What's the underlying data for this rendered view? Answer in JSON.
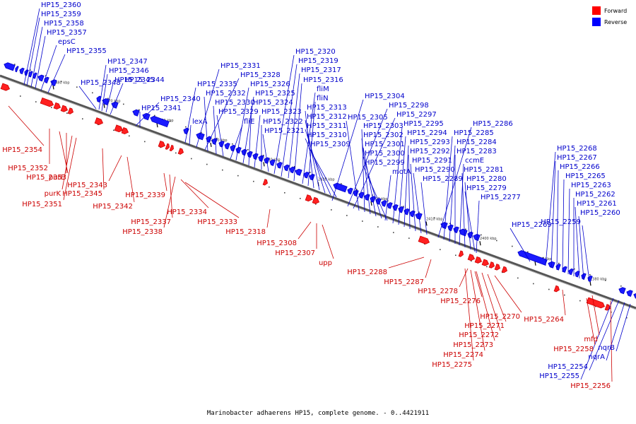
{
  "caption": "Marinobacter adhaerens HP15, complete genome. - 0..4421911",
  "legend": [
    {
      "label": "Forward",
      "color": "#ff0000"
    },
    {
      "label": "Reverse",
      "color": "#0000ff"
    }
  ],
  "colors": {
    "forward": "#cc0000",
    "forward_fill": "#ff2020",
    "reverse": "#0000cc",
    "reverse_fill": "#1a1aff",
    "backbone": "#777777"
  },
  "ticks": [
    "2480 kbp",
    "2470 kbp",
    "2460 kbp",
    "2450 kbp",
    "2440 kbp",
    "2430 kbp",
    "2420 kbp",
    "2410 kbp",
    "2400 kbp",
    "2390 kbp",
    "2380 kbp"
  ],
  "reverse_labels": [
    "HP15_2360",
    "HP15_2359",
    "HP15_2358",
    "HP15_2357",
    "epsC",
    "HP15_2355",
    "HP15_2348",
    "HP15_2347",
    "HP15_2346",
    "HP15_2345",
    "HP15_2344",
    "HP15_2340",
    "HP15_2341",
    "HP15_2335",
    "HP15_2331",
    "HP15_2328",
    "HP15_2332",
    "HP15_2330",
    "HP15_2329",
    "lexA",
    "fliE",
    "HP15_2326",
    "HP15_2325",
    "HP15_2324",
    "HP15_2323",
    "HP15_2322",
    "HP15_2321",
    "HP15_2320",
    "HP15_2319",
    "HP15_2317",
    "HP15_2316",
    "fliM",
    "fliN",
    "HP15_2313",
    "HP15_2312",
    "HP15_2311",
    "HP15_2310",
    "HP15_2309",
    "HP15_2304",
    "HP15_2298",
    "HP15_2297",
    "HP15_2305",
    "HP15_2303",
    "HP15_2302",
    "HP15_2301",
    "HP15_2300",
    "HP15_2299",
    "HP15_2295",
    "HP15_2294",
    "HP15_2293",
    "HP15_2292",
    "HP15_2291",
    "motA",
    "HP15_2290",
    "HP15_2289",
    "HP15_2286",
    "HP15_2285",
    "HP15_2284",
    "HP15_2283",
    "ccmE",
    "HP15_2281",
    "HP15_2280",
    "HP15_2279",
    "HP15_2277",
    "HP15_2269",
    "HP15_2268",
    "HP15_2267",
    "HP15_2266",
    "HP15_2265",
    "HP15_2263",
    "HP15_2262",
    "HP15_2261",
    "HP15_2260",
    "HP15_2259",
    "nqrB",
    "nqrA",
    "HP15_2254",
    "HP15_2255"
  ],
  "forward_labels": [
    "HP15_2354",
    "HP15_2352",
    "HP15_2353",
    "purE",
    "purK",
    "HP15_2351",
    "HP15_2345",
    "HP15_2343",
    "HP15_2342",
    "HP15_2339",
    "HP15_2337",
    "HP15_2338",
    "HP15_2334",
    "HP15_2333",
    "HP15_2318",
    "HP15_2308",
    "HP15_2307",
    "upp",
    "HP15_2288",
    "HP15_2287",
    "HP15_2278",
    "HP15_2276",
    "HP15_2270",
    "HP15_2271",
    "HP15_2272",
    "HP15_2273",
    "HP15_2274",
    "HP15_2275",
    "HP15_2264",
    "mfd",
    "HP15_2258",
    "HP15_2256"
  ]
}
